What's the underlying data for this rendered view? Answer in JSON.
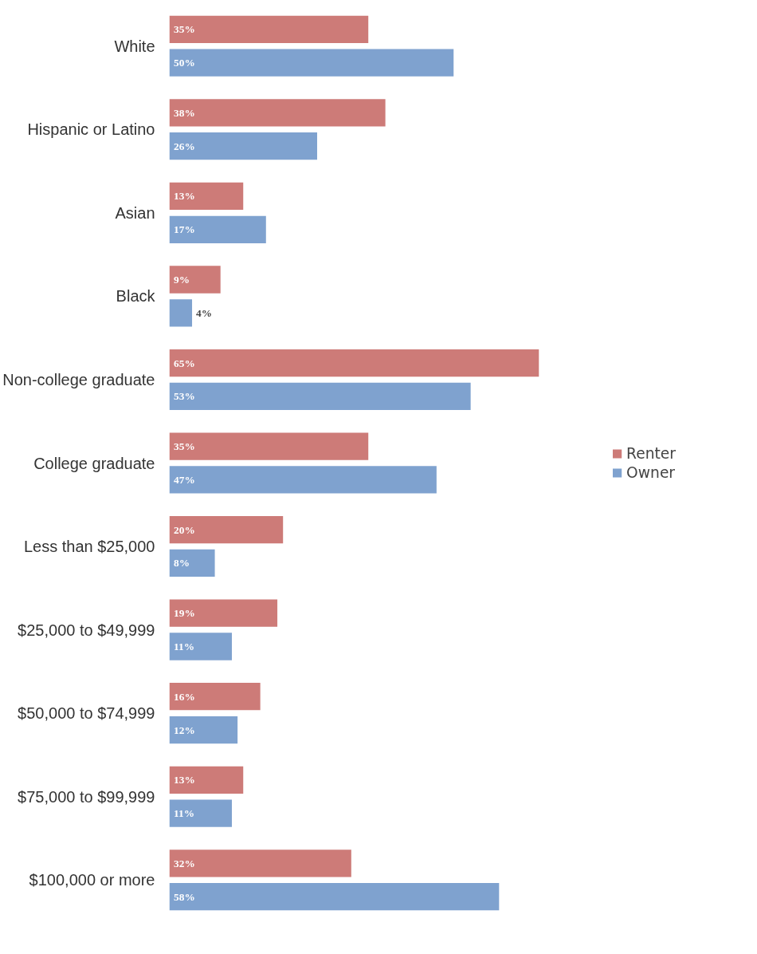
{
  "chart_data": {
    "type": "bar",
    "orientation": "horizontal",
    "legend": "right",
    "grid": false,
    "tick_labels": "y",
    "categories": [
      "White",
      "Hispanic or Latino",
      "Asian",
      "Black",
      "Non-college graduate",
      "College graduate",
      "Less than $25,000",
      "$25,000 to $49,999",
      "$50,000 to $74,999",
      "$75,000 to $99,999",
      "$100,000 or more"
    ],
    "series": [
      {
        "name": "Renter",
        "color": "#cd7b78",
        "values": [
          35,
          38,
          13,
          9,
          65,
          35,
          20,
          19,
          16,
          13,
          32
        ],
        "value_labels": [
          "35%",
          "38%",
          "13%",
          "9%",
          "65%",
          "35%",
          "20%",
          "19%",
          "16%",
          "13%",
          "32%"
        ]
      },
      {
        "name": "Owner",
        "color": "#7fa2cf",
        "values": [
          50,
          26,
          17,
          4,
          53,
          47,
          8,
          11,
          12,
          11,
          58
        ],
        "value_labels": [
          "50%",
          "26%",
          "17%",
          "4%",
          "53%",
          "47%",
          "8%",
          "11%",
          "12%",
          "11%",
          "58%"
        ]
      }
    ]
  }
}
